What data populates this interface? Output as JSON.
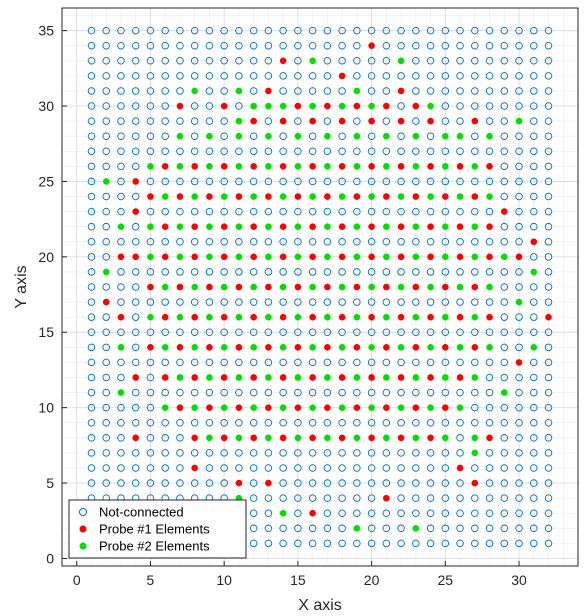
{
  "chart_data": {
    "type": "scatter",
    "xlabel": "X axis",
    "ylabel": "Y axis",
    "xlim": [
      -1,
      34
    ],
    "ylim": [
      -0.5,
      36.5
    ],
    "xticks": [
      0,
      5,
      10,
      15,
      20,
      25,
      30
    ],
    "yticks": [
      0,
      5,
      10,
      15,
      20,
      25,
      30,
      35
    ],
    "grid": "minor",
    "legend_position": "bottom-left",
    "background_grid": {
      "x": [
        1,
        32
      ],
      "y": [
        1,
        35
      ]
    },
    "series": [
      {
        "name": "Not-connected",
        "marker": "open-circle",
        "color": "#0072BD"
      },
      {
        "name": "Probe #1 Elements",
        "marker": "filled-circle",
        "color": "#ff0000",
        "points": [
          [
            20,
            34
          ],
          [
            14,
            33
          ],
          [
            18,
            32
          ],
          [
            13,
            31
          ],
          [
            22,
            31
          ],
          [
            7,
            30
          ],
          [
            10,
            30
          ],
          [
            27,
            29
          ],
          [
            17,
            30
          ],
          [
            23,
            30
          ],
          [
            12,
            29
          ],
          [
            14,
            29
          ],
          [
            16,
            29
          ],
          [
            18,
            29
          ],
          [
            20,
            29
          ],
          [
            22,
            29
          ],
          [
            24,
            29
          ],
          [
            15,
            30
          ],
          [
            19,
            30
          ],
          [
            21,
            30
          ],
          [
            4,
            25
          ],
          [
            4,
            23
          ],
          [
            29,
            23
          ],
          [
            31,
            21
          ],
          [
            3,
            20
          ],
          [
            30,
            20
          ],
          [
            2,
            17
          ],
          [
            32,
            16
          ],
          [
            3,
            16
          ],
          [
            30,
            13
          ],
          [
            4,
            12
          ],
          [
            4,
            8
          ],
          [
            28,
            8
          ],
          [
            26,
            6
          ],
          [
            8,
            6
          ],
          [
            11,
            5
          ],
          [
            13,
            5
          ],
          [
            27,
            5
          ],
          [
            16,
            3
          ],
          [
            21,
            4
          ],
          [
            6,
            26
          ],
          [
            8,
            26
          ],
          [
            10,
            26
          ],
          [
            12,
            26
          ],
          [
            14,
            26
          ],
          [
            16,
            26
          ],
          [
            18,
            26
          ],
          [
            20,
            26
          ],
          [
            22,
            26
          ],
          [
            24,
            26
          ],
          [
            26,
            26
          ],
          [
            28,
            26
          ],
          [
            5,
            24
          ],
          [
            7,
            24
          ],
          [
            9,
            24
          ],
          [
            11,
            24
          ],
          [
            13,
            24
          ],
          [
            15,
            24
          ],
          [
            17,
            24
          ],
          [
            19,
            24
          ],
          [
            21,
            24
          ],
          [
            23,
            24
          ],
          [
            25,
            24
          ],
          [
            27,
            24
          ],
          [
            6,
            22
          ],
          [
            8,
            22
          ],
          [
            10,
            22
          ],
          [
            12,
            22
          ],
          [
            14,
            22
          ],
          [
            16,
            22
          ],
          [
            18,
            22
          ],
          [
            20,
            22
          ],
          [
            22,
            22
          ],
          [
            24,
            22
          ],
          [
            26,
            22
          ],
          [
            28,
            22
          ],
          [
            4,
            20
          ],
          [
            6,
            20
          ],
          [
            8,
            20
          ],
          [
            10,
            20
          ],
          [
            12,
            20
          ],
          [
            14,
            20
          ],
          [
            16,
            20
          ],
          [
            18,
            20
          ],
          [
            20,
            20
          ],
          [
            22,
            20
          ],
          [
            24,
            20
          ],
          [
            26,
            20
          ],
          [
            28,
            20
          ],
          [
            5,
            18
          ],
          [
            7,
            18
          ],
          [
            9,
            18
          ],
          [
            11,
            18
          ],
          [
            13,
            18
          ],
          [
            15,
            18
          ],
          [
            17,
            18
          ],
          [
            19,
            18
          ],
          [
            21,
            18
          ],
          [
            23,
            18
          ],
          [
            25,
            18
          ],
          [
            27,
            18
          ],
          [
            6,
            16
          ],
          [
            8,
            16
          ],
          [
            10,
            16
          ],
          [
            12,
            16
          ],
          [
            14,
            16
          ],
          [
            16,
            16
          ],
          [
            18,
            16
          ],
          [
            20,
            16
          ],
          [
            22,
            16
          ],
          [
            24,
            16
          ],
          [
            26,
            16
          ],
          [
            28,
            16
          ],
          [
            5,
            14
          ],
          [
            7,
            14
          ],
          [
            9,
            14
          ],
          [
            11,
            14
          ],
          [
            13,
            14
          ],
          [
            15,
            14
          ],
          [
            17,
            14
          ],
          [
            19,
            14
          ],
          [
            21,
            14
          ],
          [
            23,
            14
          ],
          [
            25,
            14
          ],
          [
            27,
            14
          ],
          [
            6,
            12
          ],
          [
            8,
            12
          ],
          [
            10,
            12
          ],
          [
            12,
            12
          ],
          [
            14,
            12
          ],
          [
            16,
            12
          ],
          [
            18,
            12
          ],
          [
            20,
            12
          ],
          [
            22,
            12
          ],
          [
            24,
            12
          ],
          [
            26,
            12
          ],
          [
            7,
            10
          ],
          [
            9,
            10
          ],
          [
            11,
            10
          ],
          [
            13,
            10
          ],
          [
            15,
            10
          ],
          [
            17,
            10
          ],
          [
            19,
            10
          ],
          [
            21,
            10
          ],
          [
            23,
            10
          ],
          [
            25,
            10
          ],
          [
            8,
            8
          ],
          [
            10,
            8
          ],
          [
            12,
            8
          ],
          [
            14,
            8
          ],
          [
            16,
            8
          ],
          [
            18,
            8
          ],
          [
            20,
            8
          ],
          [
            22,
            8
          ],
          [
            24,
            8
          ]
        ]
      },
      {
        "name": "Probe #2 Elements",
        "marker": "filled-circle",
        "color": "#00e000",
        "points": [
          [
            16,
            33
          ],
          [
            22,
            33
          ],
          [
            8,
            31
          ],
          [
            11,
            31
          ],
          [
            19,
            31
          ],
          [
            12,
            30
          ],
          [
            14,
            30
          ],
          [
            16,
            30
          ],
          [
            18,
            30
          ],
          [
            20,
            30
          ],
          [
            24,
            30
          ],
          [
            13,
            30
          ],
          [
            11,
            29
          ],
          [
            7,
            28
          ],
          [
            9,
            28
          ],
          [
            11,
            28
          ],
          [
            13,
            28
          ],
          [
            15,
            28
          ],
          [
            17,
            28
          ],
          [
            19,
            28
          ],
          [
            21,
            28
          ],
          [
            23,
            28
          ],
          [
            25,
            28
          ],
          [
            26,
            28
          ],
          [
            28,
            28
          ],
          [
            30,
            29
          ],
          [
            2,
            25
          ],
          [
            3,
            22
          ],
          [
            2,
            19
          ],
          [
            31,
            19
          ],
          [
            30,
            17
          ],
          [
            3,
            14
          ],
          [
            3,
            11
          ],
          [
            29,
            11
          ],
          [
            27,
            7
          ],
          [
            11,
            4
          ],
          [
            14,
            3
          ],
          [
            19,
            2
          ],
          [
            23,
            2
          ],
          [
            31,
            14
          ],
          [
            5,
            26
          ],
          [
            7,
            26
          ],
          [
            9,
            26
          ],
          [
            11,
            26
          ],
          [
            13,
            26
          ],
          [
            15,
            26
          ],
          [
            17,
            26
          ],
          [
            19,
            26
          ],
          [
            21,
            26
          ],
          [
            23,
            26
          ],
          [
            25,
            26
          ],
          [
            27,
            26
          ],
          [
            6,
            24
          ],
          [
            8,
            24
          ],
          [
            10,
            24
          ],
          [
            12,
            24
          ],
          [
            14,
            24
          ],
          [
            16,
            24
          ],
          [
            18,
            24
          ],
          [
            20,
            24
          ],
          [
            22,
            24
          ],
          [
            24,
            24
          ],
          [
            26,
            24
          ],
          [
            28,
            24
          ],
          [
            5,
            22
          ],
          [
            7,
            22
          ],
          [
            9,
            22
          ],
          [
            11,
            22
          ],
          [
            13,
            22
          ],
          [
            15,
            22
          ],
          [
            17,
            22
          ],
          [
            19,
            22
          ],
          [
            21,
            22
          ],
          [
            23,
            22
          ],
          [
            25,
            22
          ],
          [
            27,
            22
          ],
          [
            5,
            20
          ],
          [
            7,
            20
          ],
          [
            9,
            20
          ],
          [
            11,
            20
          ],
          [
            13,
            20
          ],
          [
            15,
            20
          ],
          [
            17,
            20
          ],
          [
            19,
            20
          ],
          [
            21,
            20
          ],
          [
            23,
            20
          ],
          [
            25,
            20
          ],
          [
            27,
            20
          ],
          [
            29,
            20
          ],
          [
            6,
            18
          ],
          [
            8,
            18
          ],
          [
            10,
            18
          ],
          [
            12,
            18
          ],
          [
            14,
            18
          ],
          [
            16,
            18
          ],
          [
            18,
            18
          ],
          [
            20,
            18
          ],
          [
            22,
            18
          ],
          [
            24,
            18
          ],
          [
            26,
            18
          ],
          [
            28,
            18
          ],
          [
            5,
            16
          ],
          [
            7,
            16
          ],
          [
            9,
            16
          ],
          [
            11,
            16
          ],
          [
            13,
            16
          ],
          [
            15,
            16
          ],
          [
            17,
            16
          ],
          [
            19,
            16
          ],
          [
            21,
            16
          ],
          [
            23,
            16
          ],
          [
            25,
            16
          ],
          [
            27,
            16
          ],
          [
            6,
            14
          ],
          [
            8,
            14
          ],
          [
            10,
            14
          ],
          [
            12,
            14
          ],
          [
            14,
            14
          ],
          [
            16,
            14
          ],
          [
            18,
            14
          ],
          [
            20,
            14
          ],
          [
            22,
            14
          ],
          [
            24,
            14
          ],
          [
            26,
            14
          ],
          [
            28,
            14
          ],
          [
            7,
            12
          ],
          [
            9,
            12
          ],
          [
            11,
            12
          ],
          [
            13,
            12
          ],
          [
            15,
            12
          ],
          [
            17,
            12
          ],
          [
            19,
            12
          ],
          [
            21,
            12
          ],
          [
            23,
            12
          ],
          [
            25,
            12
          ],
          [
            27,
            12
          ],
          [
            6,
            10
          ],
          [
            8,
            10
          ],
          [
            10,
            10
          ],
          [
            12,
            10
          ],
          [
            14,
            10
          ],
          [
            16,
            10
          ],
          [
            18,
            10
          ],
          [
            20,
            10
          ],
          [
            22,
            10
          ],
          [
            24,
            10
          ],
          [
            26,
            10
          ],
          [
            9,
            8
          ],
          [
            11,
            8
          ],
          [
            13,
            8
          ],
          [
            15,
            8
          ],
          [
            17,
            8
          ],
          [
            19,
            8
          ],
          [
            21,
            8
          ],
          [
            23,
            8
          ],
          [
            25,
            8
          ],
          [
            27,
            8
          ]
        ]
      }
    ]
  }
}
